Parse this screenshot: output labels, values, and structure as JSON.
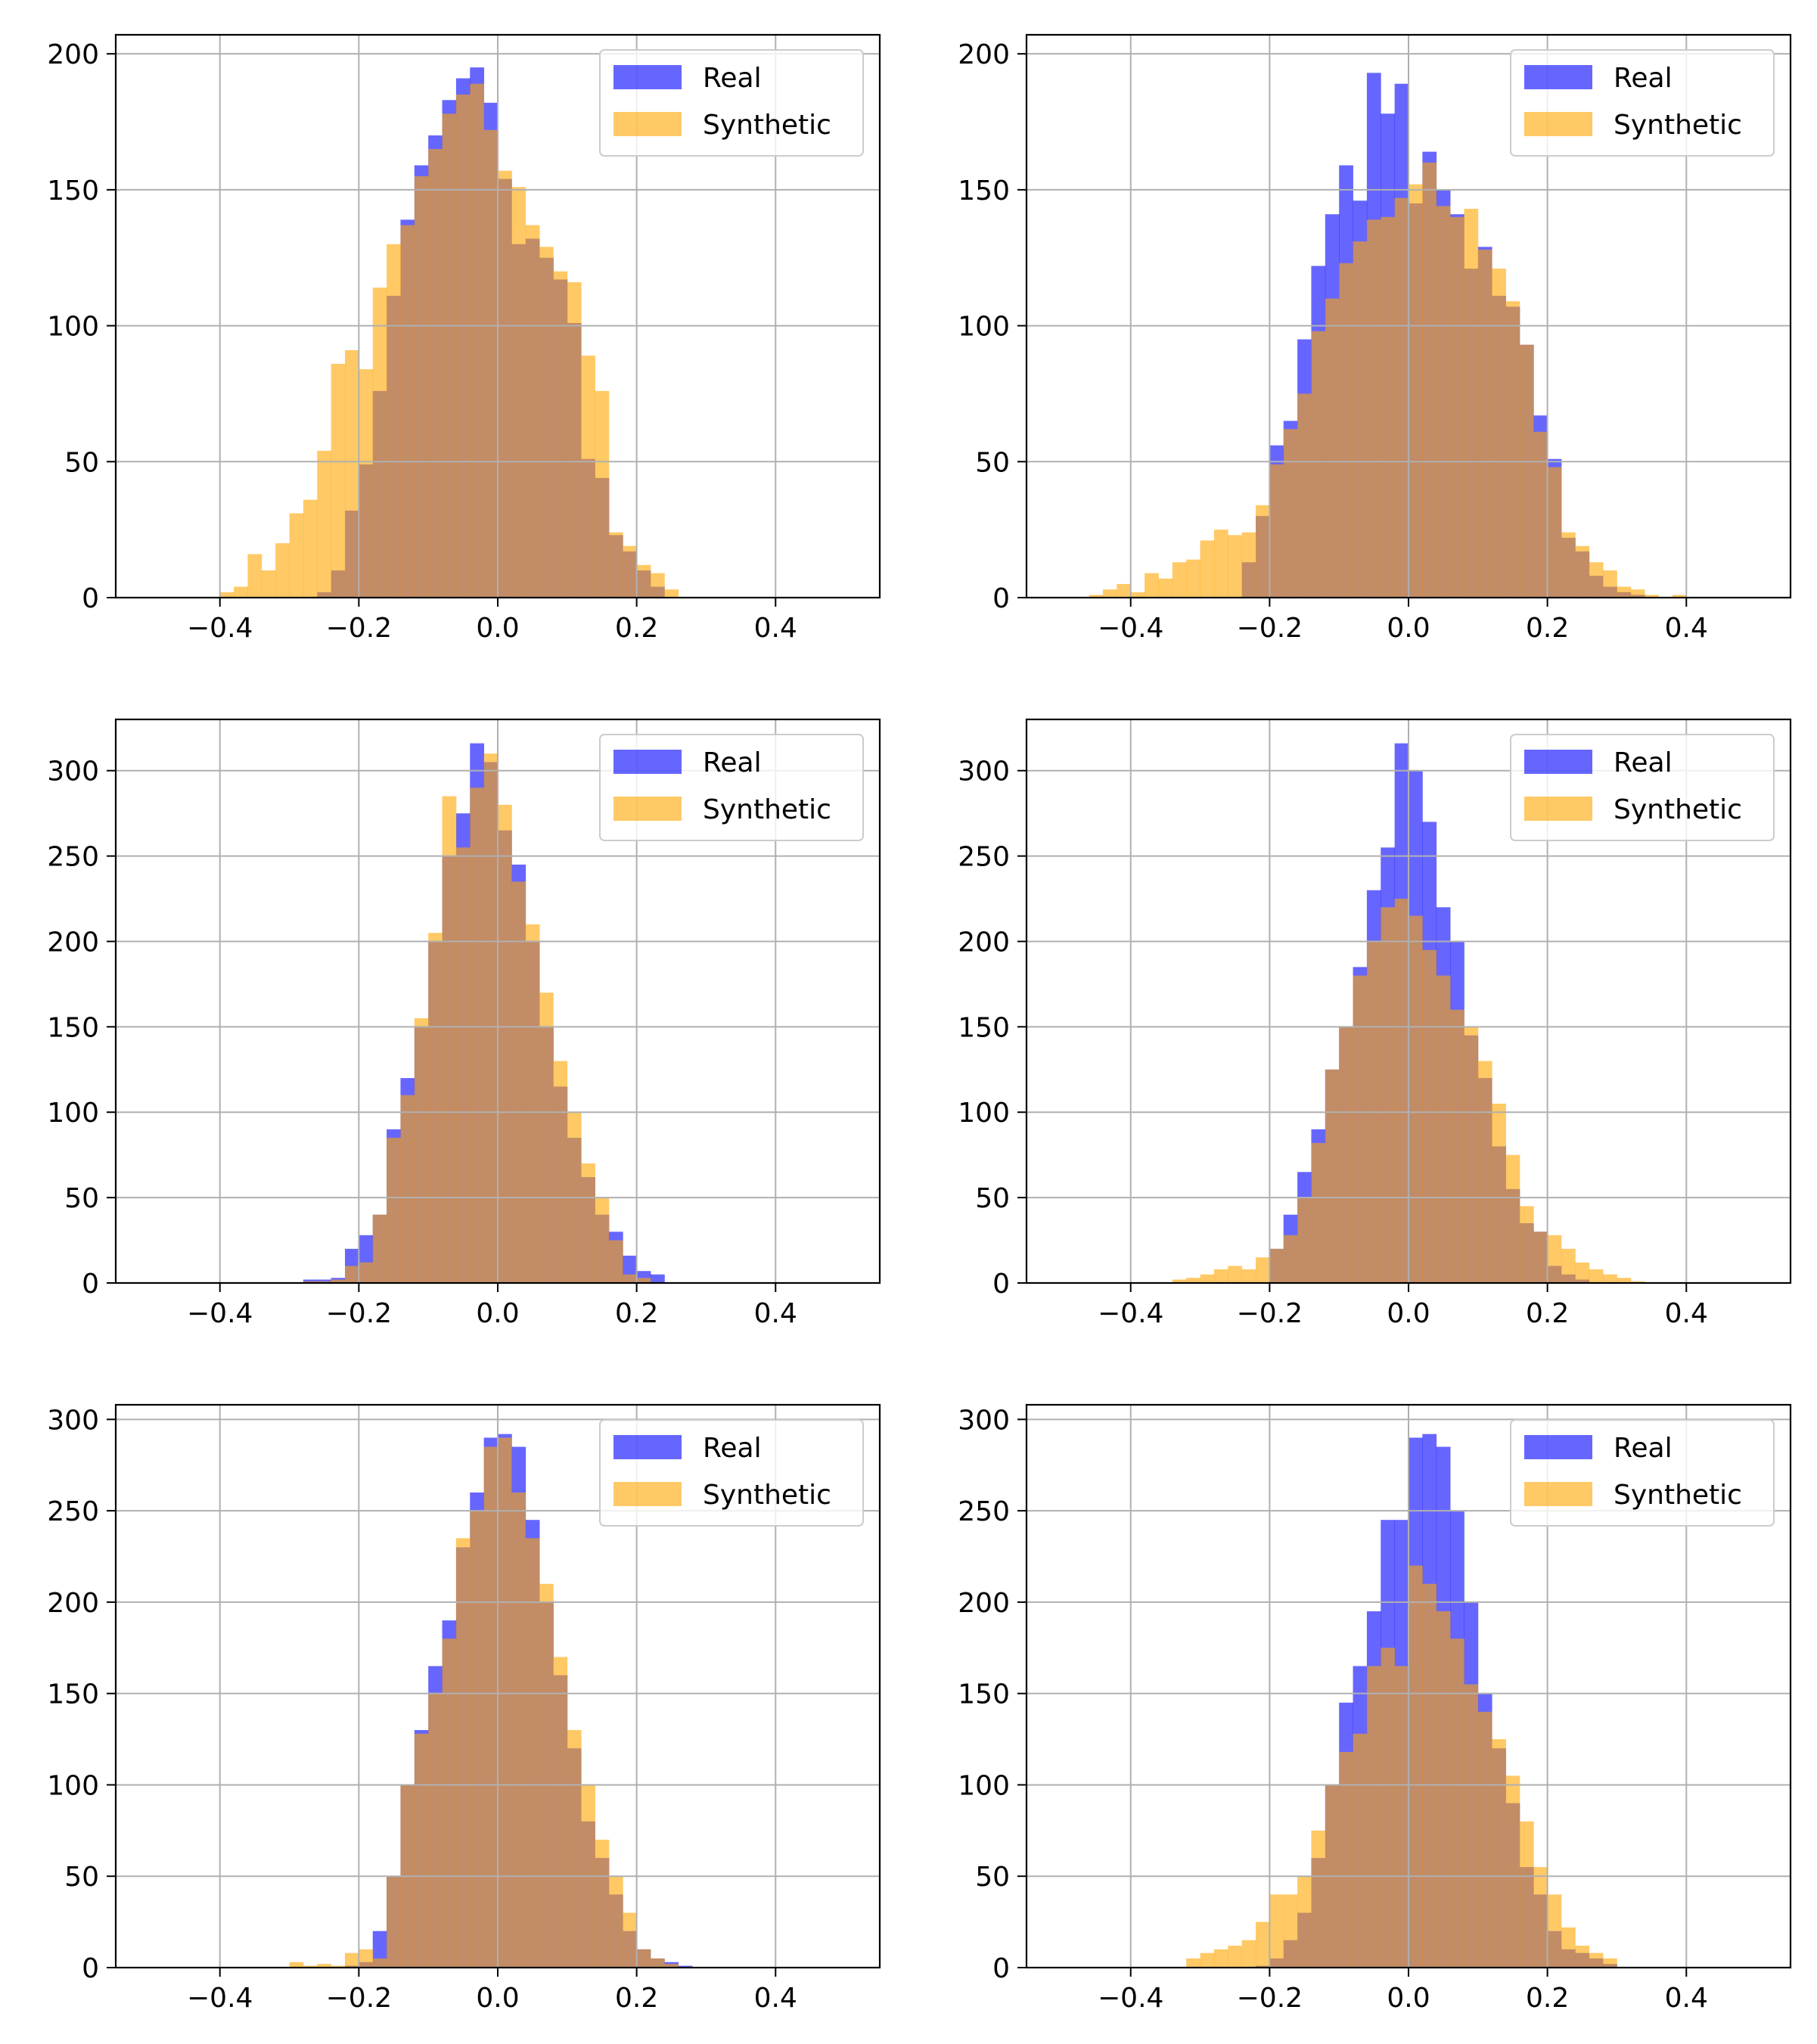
{
  "colors": {
    "real": "#0000ff",
    "synthetic": "#ffa500",
    "bar_opacity": 0.6,
    "grid": "#b0b0b0",
    "axes": "#000000",
    "legend_edge": "#cccccc"
  },
  "legend": {
    "location": "top-right",
    "entries": [
      "Real",
      "Synthetic"
    ]
  },
  "chart_data": [
    {
      "type": "histogram",
      "grid": true,
      "xlim": [
        -0.55,
        0.55
      ],
      "ylim": [
        0,
        207
      ],
      "xticks": [
        -0.4,
        -0.2,
        0.0,
        0.2,
        0.4
      ],
      "xtick_labels": [
        "−0.4",
        "−0.2",
        "0.0",
        "0.2",
        "0.4"
      ],
      "yticks": [
        0,
        50,
        100,
        150,
        200
      ],
      "ytick_labels": [
        "0",
        "50",
        "100",
        "150",
        "200"
      ],
      "series": [
        {
          "name": "Real",
          "x0": -0.4,
          "bin_width": 0.02,
          "values": [
            0,
            0,
            0,
            0,
            0,
            0,
            0,
            2,
            10,
            32,
            49,
            76,
            111,
            139,
            159,
            170,
            183,
            191,
            195,
            182,
            154,
            130,
            132,
            125,
            117,
            101,
            51,
            44,
            23,
            17,
            10,
            4,
            0,
            0,
            0,
            0,
            0,
            0,
            0,
            0
          ]
        },
        {
          "name": "Synthetic",
          "x0": -0.4,
          "bin_width": 0.02,
          "values": [
            2,
            4,
            16,
            10,
            20,
            31,
            36,
            54,
            86,
            91,
            84,
            114,
            130,
            137,
            155,
            165,
            178,
            185,
            189,
            172,
            157,
            151,
            137,
            129,
            120,
            116,
            89,
            76,
            24,
            19,
            12,
            9,
            3,
            0,
            0,
            0,
            0,
            0,
            0,
            0
          ]
        }
      ]
    },
    {
      "type": "histogram",
      "grid": true,
      "xlim": [
        -0.55,
        0.55
      ],
      "ylim": [
        0,
        207
      ],
      "xticks": [
        -0.4,
        -0.2,
        0.0,
        0.2,
        0.4
      ],
      "xtick_labels": [
        "−0.4",
        "−0.2",
        "0.0",
        "0.2",
        "0.4"
      ],
      "yticks": [
        0,
        50,
        100,
        150,
        200
      ],
      "ytick_labels": [
        "0",
        "50",
        "100",
        "150",
        "200"
      ],
      "series": [
        {
          "name": "Real",
          "x0": -0.48,
          "bin_width": 0.02,
          "values": [
            0,
            0,
            0,
            0,
            0,
            0,
            0,
            0,
            0,
            0,
            0,
            0,
            13,
            30,
            56,
            65,
            95,
            122,
            141,
            159,
            146,
            193,
            178,
            189,
            145,
            164,
            150,
            141,
            121,
            129,
            111,
            107,
            93,
            67,
            51,
            22,
            17,
            8,
            4,
            2,
            1,
            0,
            0,
            0,
            0,
            0,
            0,
            0
          ]
        },
        {
          "name": "Synthetic",
          "x0": -0.48,
          "bin_width": 0.02,
          "values": [
            0,
            1,
            3,
            5,
            2,
            9,
            7,
            13,
            14,
            21,
            25,
            23,
            24,
            34,
            49,
            62,
            75,
            98,
            110,
            123,
            131,
            139,
            140,
            147,
            152,
            160,
            144,
            140,
            143,
            128,
            121,
            109,
            93,
            61,
            48,
            24,
            19,
            13,
            10,
            4,
            3,
            1,
            0,
            1,
            0,
            0,
            0,
            0
          ]
        }
      ]
    },
    {
      "type": "histogram",
      "grid": true,
      "xlim": [
        -0.55,
        0.55
      ],
      "ylim": [
        0,
        330
      ],
      "xticks": [
        -0.4,
        -0.2,
        0.0,
        0.2,
        0.4
      ],
      "xtick_labels": [
        "−0.4",
        "−0.2",
        "0.0",
        "0.2",
        "0.4"
      ],
      "yticks": [
        0,
        50,
        100,
        150,
        200,
        250,
        300
      ],
      "ytick_labels": [
        "0",
        "50",
        "100",
        "150",
        "200",
        "250",
        "300"
      ],
      "series": [
        {
          "name": "Real",
          "x0": -0.28,
          "bin_width": 0.02,
          "values": [
            2,
            2,
            3,
            20,
            28,
            40,
            90,
            120,
            150,
            200,
            250,
            275,
            316,
            305,
            265,
            245,
            200,
            150,
            115,
            85,
            62,
            40,
            30,
            16,
            7,
            5,
            0,
            0
          ]
        },
        {
          "name": "Synthetic",
          "x0": -0.28,
          "bin_width": 0.02,
          "values": [
            1,
            1,
            2,
            10,
            12,
            40,
            85,
            110,
            155,
            205,
            285,
            255,
            290,
            310,
            280,
            235,
            210,
            170,
            130,
            100,
            70,
            50,
            25,
            5,
            3,
            0,
            0,
            0
          ]
        }
      ]
    },
    {
      "type": "histogram",
      "grid": true,
      "xlim": [
        -0.55,
        0.55
      ],
      "ylim": [
        0,
        330
      ],
      "xticks": [
        -0.4,
        -0.2,
        0.0,
        0.2,
        0.4
      ],
      "xtick_labels": [
        "−0.4",
        "−0.2",
        "0.0",
        "0.2",
        "0.4"
      ],
      "yticks": [
        0,
        50,
        100,
        150,
        200,
        250,
        300
      ],
      "ytick_labels": [
        "0",
        "50",
        "100",
        "150",
        "200",
        "250",
        "300"
      ],
      "series": [
        {
          "name": "Real",
          "x0": -0.34,
          "bin_width": 0.02,
          "values": [
            0,
            0,
            0,
            0,
            0,
            0,
            0,
            20,
            40,
            65,
            90,
            125,
            150,
            185,
            230,
            255,
            316,
            300,
            270,
            220,
            200,
            145,
            120,
            80,
            55,
            35,
            30,
            10,
            5,
            2,
            0,
            0,
            0,
            0,
            0
          ]
        },
        {
          "name": "Synthetic",
          "x0": -0.34,
          "bin_width": 0.02,
          "values": [
            2,
            3,
            5,
            8,
            10,
            8,
            15,
            20,
            28,
            50,
            82,
            125,
            150,
            180,
            200,
            220,
            225,
            215,
            195,
            180,
            160,
            150,
            130,
            105,
            75,
            45,
            30,
            28,
            20,
            12,
            8,
            5,
            3,
            1,
            0
          ]
        }
      ]
    },
    {
      "type": "histogram",
      "grid": true,
      "xlim": [
        -0.55,
        0.55
      ],
      "ylim": [
        0,
        308
      ],
      "xticks": [
        -0.4,
        -0.2,
        0.0,
        0.2,
        0.4
      ],
      "xtick_labels": [
        "−0.4",
        "−0.2",
        "0.0",
        "0.2",
        "0.4"
      ],
      "yticks": [
        0,
        50,
        100,
        150,
        200,
        250,
        300
      ],
      "ytick_labels": [
        "0",
        "50",
        "100",
        "150",
        "200",
        "250",
        "300"
      ],
      "series": [
        {
          "name": "Real",
          "x0": -0.3,
          "bin_width": 0.02,
          "values": [
            0,
            0,
            0,
            0,
            1,
            3,
            20,
            50,
            100,
            130,
            165,
            190,
            230,
            260,
            290,
            292,
            285,
            245,
            200,
            160,
            120,
            80,
            60,
            40,
            20,
            10,
            5,
            3,
            1,
            0
          ]
        },
        {
          "name": "Synthetic",
          "x0": -0.3,
          "bin_width": 0.02,
          "values": [
            3,
            1,
            2,
            1,
            8,
            10,
            5,
            50,
            100,
            128,
            150,
            180,
            235,
            250,
            285,
            290,
            260,
            235,
            210,
            170,
            130,
            100,
            70,
            50,
            30,
            10,
            5,
            2,
            0,
            0
          ]
        }
      ]
    },
    {
      "type": "histogram",
      "grid": true,
      "xlim": [
        -0.55,
        0.55
      ],
      "ylim": [
        0,
        308
      ],
      "xticks": [
        -0.4,
        -0.2,
        0.0,
        0.2,
        0.4
      ],
      "xtick_labels": [
        "−0.4",
        "−0.2",
        "0.0",
        "0.2",
        "0.4"
      ],
      "yticks": [
        0,
        50,
        100,
        150,
        200,
        250,
        300
      ],
      "ytick_labels": [
        "0",
        "50",
        "100",
        "150",
        "200",
        "250",
        "300"
      ],
      "series": [
        {
          "name": "Real",
          "x0": -0.32,
          "bin_width": 0.02,
          "values": [
            0,
            0,
            0,
            0,
            0,
            1,
            5,
            15,
            30,
            60,
            100,
            145,
            165,
            195,
            245,
            245,
            290,
            292,
            285,
            250,
            200,
            150,
            120,
            90,
            55,
            40,
            20,
            10,
            8,
            5,
            2,
            0
          ]
        },
        {
          "name": "Synthetic",
          "x0": -0.32,
          "bin_width": 0.02,
          "values": [
            5,
            8,
            10,
            12,
            15,
            25,
            40,
            40,
            50,
            75,
            100,
            118,
            128,
            165,
            175,
            165,
            220,
            210,
            195,
            180,
            155,
            140,
            125,
            105,
            80,
            55,
            40,
            22,
            12,
            8,
            5,
            0
          ]
        }
      ]
    }
  ]
}
